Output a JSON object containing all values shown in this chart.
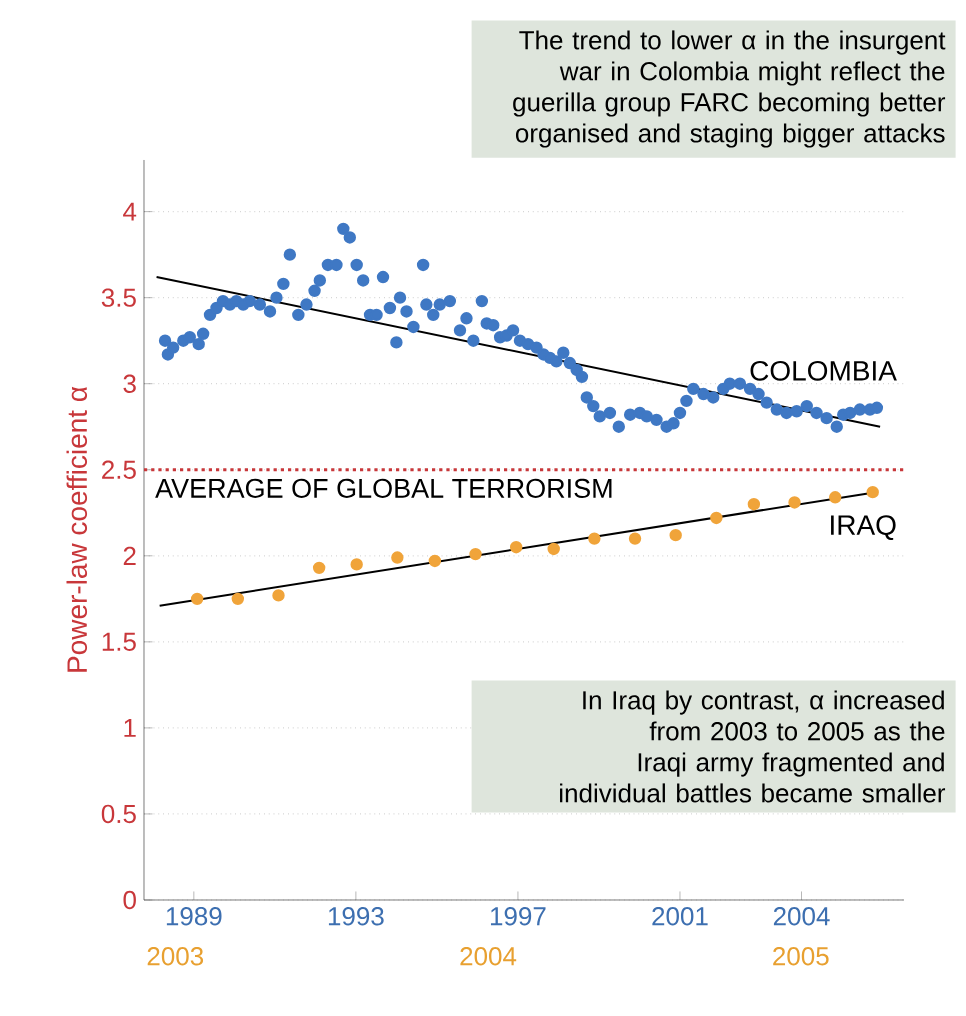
{
  "chart_data": {
    "type": "scatter",
    "ylabel": "Power-law coefficient α",
    "annotations": [
      "The trend to lower α in the insurgent war in Colombia might reflect the guerilla group FARC becoming better organised and staging bigger attacks",
      "In Iraq by contrast, α increased from 2003 to 2005 as the Iraqi army fragmented and individual battles became smaller"
    ],
    "xlim": [
      1987.77,
      2006.53
    ],
    "xticks": [
      1989,
      1993,
      1997,
      2001,
      2004
    ],
    "x2lim": [
      2002.9,
      2005.33
    ],
    "x2ticks": [
      2003,
      2004,
      2005
    ],
    "ylim": [
      0,
      4.3
    ],
    "yticks": [
      0,
      0.5,
      1,
      1.5,
      2,
      2.5,
      3,
      3.5,
      4
    ],
    "grid": "y",
    "marker": "circle",
    "ref_lines": [
      {
        "axis": "y",
        "value": 2.5,
        "label": "AVERAGE OF GLOBAL TERRORISM",
        "color": "#c8373a",
        "line_style": "dotted"
      }
    ],
    "series": [
      {
        "name": "COLOMBIA",
        "color": "#3f78c4",
        "x": [
          1988.29,
          1988.36,
          1988.49,
          1988.74,
          1988.9,
          1989.12,
          1989.23,
          1989.4,
          1989.56,
          1989.72,
          1989.89,
          1990.05,
          1990.22,
          1990.38,
          1990.63,
          1990.88,
          1991.04,
          1991.21,
          1991.37,
          1991.58,
          1991.78,
          1991.98,
          1992.11,
          1992.31,
          1992.52,
          1992.69,
          1992.85,
          1993.02,
          1993.18,
          1993.35,
          1993.51,
          1993.67,
          1993.84,
          1994.0,
          1994.09,
          1994.25,
          1994.42,
          1994.66,
          1994.74,
          1994.91,
          1995.07,
          1995.32,
          1995.57,
          1995.73,
          1995.9,
          1996.11,
          1996.23,
          1996.39,
          1996.56,
          1996.72,
          1996.88,
          1997.05,
          1997.25,
          1997.46,
          1997.63,
          1997.79,
          1997.95,
          1998.12,
          1998.28,
          1998.45,
          1998.58,
          1998.7,
          1998.86,
          1999.02,
          1999.27,
          1999.49,
          1999.77,
          2000.01,
          2000.18,
          2000.42,
          2000.67,
          2000.84,
          2001.0,
          2001.16,
          2001.33,
          2001.58,
          2001.82,
          2002.07,
          2002.23,
          2002.48,
          2002.73,
          2002.94,
          2003.14,
          2003.39,
          2003.63,
          2003.88,
          2004.13,
          2004.37,
          2004.62,
          2004.87,
          2005.03,
          2005.2,
          2005.44,
          2005.69,
          2005.86
        ],
        "values": [
          3.25,
          3.17,
          3.21,
          3.25,
          3.27,
          3.23,
          3.29,
          3.4,
          3.44,
          3.48,
          3.46,
          3.48,
          3.46,
          3.48,
          3.46,
          3.42,
          3.5,
          3.58,
          3.75,
          3.4,
          3.46,
          3.54,
          3.6,
          3.69,
          3.69,
          3.9,
          3.85,
          3.69,
          3.6,
          3.4,
          3.4,
          3.62,
          3.44,
          3.24,
          3.5,
          3.42,
          3.33,
          3.69,
          3.46,
          3.4,
          3.46,
          3.48,
          3.31,
          3.38,
          3.25,
          3.48,
          3.35,
          3.34,
          3.27,
          3.28,
          3.31,
          3.25,
          3.23,
          3.21,
          3.17,
          3.15,
          3.13,
          3.18,
          3.12,
          3.08,
          3.04,
          2.92,
          2.87,
          2.81,
          2.83,
          2.75,
          2.82,
          2.83,
          2.81,
          2.79,
          2.75,
          2.77,
          2.83,
          2.9,
          2.97,
          2.94,
          2.92,
          2.97,
          3.0,
          3.0,
          2.97,
          2.94,
          2.89,
          2.85,
          2.83,
          2.84,
          2.87,
          2.83,
          2.8,
          2.75,
          2.82,
          2.83,
          2.85,
          2.85,
          2.86
        ]
      },
      {
        "type": "line",
        "color": "#000000",
        "marker": "none",
        "x": [
          1988.08,
          2005.94
        ],
        "values": [
          3.62,
          2.75
        ]
      },
      {
        "name": "IRAQ",
        "color": "#f0a43a",
        "axis": "x2",
        "x": [
          2003.07,
          2003.2,
          2003.33,
          2003.46,
          2003.58,
          2003.71,
          2003.83,
          2003.96,
          2004.09,
          2004.21,
          2004.34,
          2004.47,
          2004.6,
          2004.73,
          2004.85,
          2004.98,
          2005.11,
          2005.23
        ],
        "values": [
          1.75,
          1.75,
          1.77,
          1.93,
          1.95,
          1.99,
          1.97,
          2.01,
          2.05,
          2.04,
          2.1,
          2.1,
          2.12,
          2.22,
          2.3,
          2.31,
          2.34,
          2.37
        ]
      },
      {
        "type": "line",
        "color": "#000000",
        "marker": "none",
        "axis": "x2",
        "x": [
          2002.95,
          2005.24
        ],
        "values": [
          1.71,
          2.37
        ]
      }
    ]
  }
}
